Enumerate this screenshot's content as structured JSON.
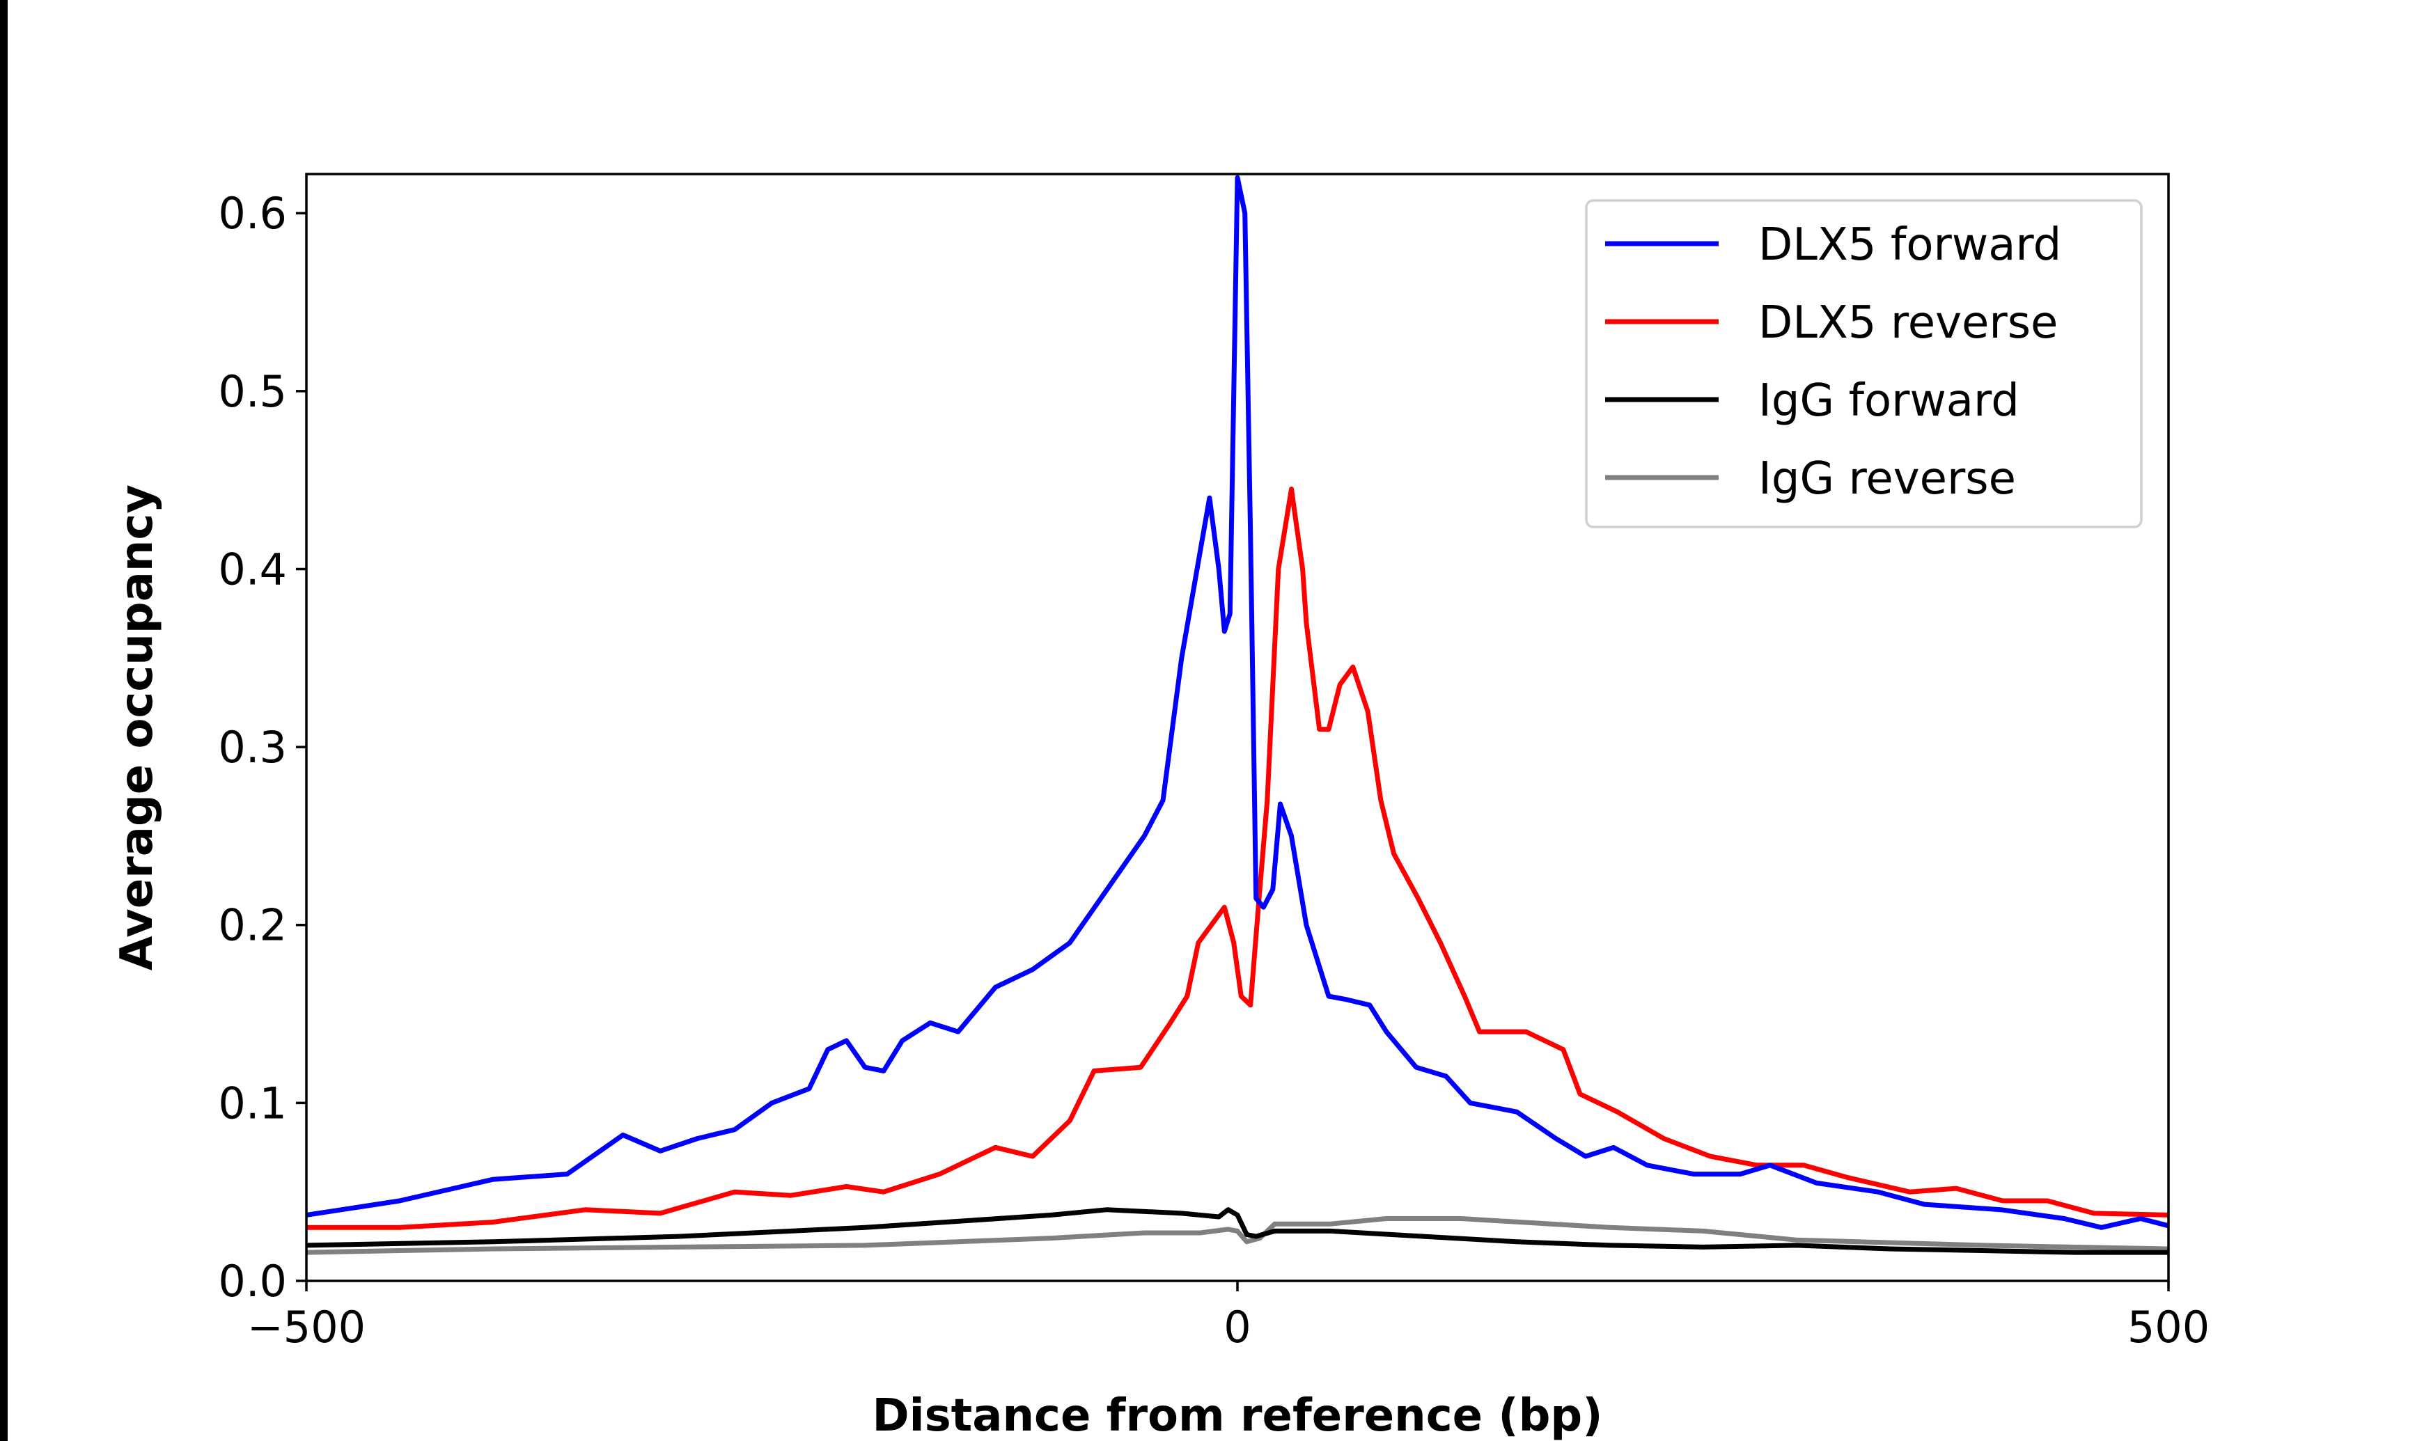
{
  "chart_data": {
    "type": "line",
    "title": "",
    "xlabel": "Distance from reference (bp)",
    "ylabel": "Average occupancy",
    "xlim": [
      -500,
      500
    ],
    "ylim": [
      0,
      0.622
    ],
    "xticks": [
      -500,
      0,
      500
    ],
    "xtick_labels": [
      "−500",
      "0",
      "500"
    ],
    "yticks": [
      0.0,
      0.1,
      0.2,
      0.3,
      0.4,
      0.5,
      0.6
    ],
    "ytick_labels": [
      "0.0",
      "0.1",
      "0.2",
      "0.3",
      "0.4",
      "0.5",
      "0.6"
    ],
    "grid": false,
    "legend_position": "top-right",
    "series": [
      {
        "name": "DLX5 forward",
        "color": "#0000ff",
        "x": [
          -500,
          -450,
          -400,
          -360,
          -330,
          -310,
          -290,
          -270,
          -250,
          -230,
          -220,
          -210,
          -200,
          -190,
          -180,
          -165,
          -150,
          -130,
          -110,
          -90,
          -70,
          -50,
          -40,
          -30,
          -20,
          -15,
          -10,
          -7,
          -4,
          0,
          4,
          7,
          10,
          14,
          19,
          23,
          29,
          37,
          49,
          59,
          71,
          80,
          96,
          112,
          125,
          150,
          171,
          187,
          202,
          220,
          245,
          270,
          286,
          311,
          344,
          369,
          410,
          444,
          464,
          485,
          500
        ],
        "y": [
          0.037,
          0.045,
          0.057,
          0.06,
          0.082,
          0.073,
          0.08,
          0.085,
          0.1,
          0.108,
          0.13,
          0.135,
          0.12,
          0.118,
          0.135,
          0.145,
          0.14,
          0.165,
          0.175,
          0.19,
          0.22,
          0.25,
          0.27,
          0.35,
          0.41,
          0.44,
          0.4,
          0.365,
          0.375,
          0.62,
          0.6,
          0.42,
          0.215,
          0.21,
          0.22,
          0.268,
          0.25,
          0.2,
          0.16,
          0.158,
          0.155,
          0.14,
          0.12,
          0.115,
          0.1,
          0.095,
          0.08,
          0.07,
          0.075,
          0.065,
          0.06,
          0.06,
          0.065,
          0.055,
          0.05,
          0.043,
          0.04,
          0.035,
          0.03,
          0.035,
          0.031
        ]
      },
      {
        "name": "DLX5 reverse",
        "color": "#ff0000",
        "x": [
          -500,
          -450,
          -400,
          -350,
          -310,
          -270,
          -240,
          -210,
          -190,
          -160,
          -130,
          -110,
          -90,
          -77,
          -52,
          -36,
          -27,
          -21,
          -7,
          -2,
          2,
          7,
          12,
          16,
          22,
          29,
          35,
          37,
          44,
          49,
          55,
          62,
          70,
          77,
          84,
          97,
          109,
          122,
          130,
          155,
          175,
          184,
          204,
          229,
          254,
          279,
          304,
          328,
          361,
          386,
          411,
          435,
          460,
          500
        ],
        "y": [
          0.03,
          0.03,
          0.033,
          0.04,
          0.038,
          0.05,
          0.048,
          0.053,
          0.05,
          0.06,
          0.075,
          0.07,
          0.09,
          0.118,
          0.12,
          0.145,
          0.16,
          0.19,
          0.21,
          0.19,
          0.16,
          0.155,
          0.22,
          0.27,
          0.4,
          0.445,
          0.4,
          0.37,
          0.31,
          0.31,
          0.335,
          0.345,
          0.32,
          0.27,
          0.24,
          0.215,
          0.19,
          0.16,
          0.14,
          0.14,
          0.13,
          0.105,
          0.095,
          0.08,
          0.07,
          0.065,
          0.065,
          0.058,
          0.05,
          0.052,
          0.045,
          0.045,
          0.038,
          0.037
        ]
      },
      {
        "name": "IgG forward",
        "color": "#000000",
        "x": [
          -500,
          -400,
          -300,
          -200,
          -100,
          -70,
          -30,
          -10,
          -5,
          0,
          5,
          10,
          20,
          50,
          100,
          150,
          200,
          250,
          300,
          350,
          400,
          450,
          500
        ],
        "y": [
          0.02,
          0.022,
          0.025,
          0.03,
          0.037,
          0.04,
          0.038,
          0.036,
          0.04,
          0.037,
          0.026,
          0.025,
          0.028,
          0.028,
          0.025,
          0.022,
          0.02,
          0.019,
          0.02,
          0.018,
          0.017,
          0.016,
          0.016
        ]
      },
      {
        "name": "IgG reverse",
        "color": "#808080",
        "x": [
          -500,
          -400,
          -300,
          -200,
          -100,
          -50,
          -20,
          -5,
          0,
          5,
          12,
          20,
          50,
          80,
          120,
          200,
          250,
          300,
          400,
          500
        ],
        "y": [
          0.016,
          0.018,
          0.019,
          0.02,
          0.024,
          0.027,
          0.027,
          0.029,
          0.028,
          0.022,
          0.024,
          0.032,
          0.032,
          0.035,
          0.035,
          0.03,
          0.028,
          0.023,
          0.02,
          0.018
        ]
      }
    ]
  }
}
